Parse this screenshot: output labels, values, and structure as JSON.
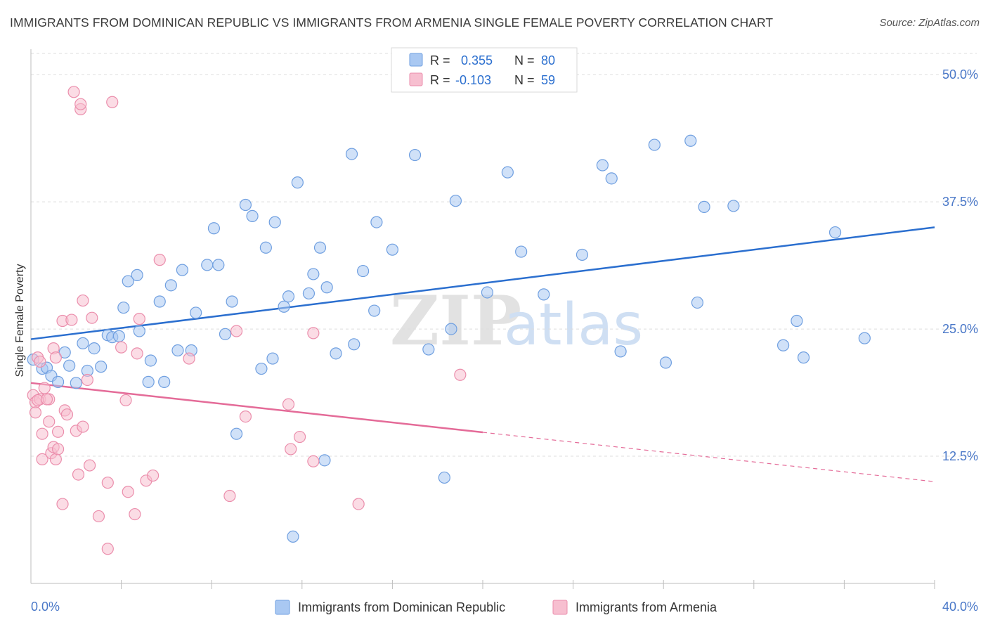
{
  "title": "IMMIGRANTS FROM DOMINICAN REPUBLIC VS IMMIGRANTS FROM ARMENIA SINGLE FEMALE POVERTY CORRELATION CHART",
  "source": "Source: ZipAtlas.com",
  "watermark": {
    "zip": "ZIP",
    "atlas": "atlas"
  },
  "colors": {
    "blue_fill": "#a9c8f2",
    "blue_stroke": "#6f9fe0",
    "blue_line": "#2b6fcf",
    "pink_fill": "#f7bfd0",
    "pink_stroke": "#eb8eac",
    "pink_line": "#e46b98",
    "tick_text": "#4a78c8",
    "grid": "#dddddd"
  },
  "stats_box": {
    "rows": [
      {
        "r_label": "R =",
        "r_value": "0.355",
        "n_label": "N =",
        "n_value": "80"
      },
      {
        "r_label": "R =",
        "r_value": "-0.103",
        "n_label": "N =",
        "n_value": "59"
      }
    ]
  },
  "chart_data": {
    "type": "scatter",
    "ylabel": "Single Female Poverty",
    "xlim": [
      0,
      40
    ],
    "ylim": [
      0,
      52.5
    ],
    "x_tick_labels": [
      "0.0%",
      "40.0%"
    ],
    "y_ticks": [
      {
        "value": 12.5,
        "label": "12.5%"
      },
      {
        "value": 25,
        "label": "25.0%"
      },
      {
        "value": 37.5,
        "label": "37.5%"
      },
      {
        "value": 50,
        "label": "50.0%"
      }
    ],
    "legend": [
      "Immigrants from Dominican Republic",
      "Immigrants from Armenia"
    ],
    "series": [
      {
        "name": "Immigrants from Dominican Republic",
        "color": "blue",
        "trend": {
          "x0": 0,
          "y0": 24.0,
          "x1": 40,
          "y1": 35.0,
          "solid_to": 40
        },
        "points": [
          [
            0.1,
            22.0
          ],
          [
            0.5,
            21.1
          ],
          [
            0.7,
            21.2
          ],
          [
            0.9,
            20.4
          ],
          [
            1.2,
            19.8
          ],
          [
            1.5,
            22.7
          ],
          [
            1.7,
            21.4
          ],
          [
            2.0,
            19.7
          ],
          [
            2.3,
            23.6
          ],
          [
            2.5,
            20.9
          ],
          [
            2.8,
            23.1
          ],
          [
            3.1,
            21.3
          ],
          [
            3.4,
            24.4
          ],
          [
            3.6,
            24.2
          ],
          [
            3.9,
            24.3
          ],
          [
            4.1,
            27.1
          ],
          [
            4.3,
            29.7
          ],
          [
            4.7,
            30.3
          ],
          [
            4.8,
            24.8
          ],
          [
            5.2,
            19.8
          ],
          [
            5.3,
            21.9
          ],
          [
            5.7,
            27.7
          ],
          [
            5.9,
            19.8
          ],
          [
            6.2,
            29.3
          ],
          [
            6.5,
            22.9
          ],
          [
            6.7,
            30.8
          ],
          [
            7.1,
            22.9
          ],
          [
            7.3,
            26.6
          ],
          [
            7.8,
            31.3
          ],
          [
            8.1,
            34.9
          ],
          [
            8.3,
            31.3
          ],
          [
            8.6,
            24.5
          ],
          [
            8.9,
            27.7
          ],
          [
            9.1,
            14.7
          ],
          [
            9.5,
            37.2
          ],
          [
            9.8,
            36.1
          ],
          [
            10.2,
            21.1
          ],
          [
            10.4,
            33.0
          ],
          [
            10.7,
            22.1
          ],
          [
            10.8,
            35.5
          ],
          [
            11.2,
            27.2
          ],
          [
            11.4,
            28.2
          ],
          [
            11.8,
            39.4
          ],
          [
            12.3,
            28.5
          ],
          [
            12.5,
            30.4
          ],
          [
            12.8,
            33.0
          ],
          [
            13.1,
            29.1
          ],
          [
            13.0,
            12.1
          ],
          [
            13.5,
            22.6
          ],
          [
            14.2,
            42.2
          ],
          [
            14.3,
            23.5
          ],
          [
            14.7,
            30.7
          ],
          [
            15.2,
            26.8
          ],
          [
            15.3,
            35.5
          ],
          [
            16.0,
            32.8
          ],
          [
            17.0,
            42.1
          ],
          [
            17.6,
            23.0
          ],
          [
            18.8,
            37.6
          ],
          [
            18.6,
            25.0
          ],
          [
            18.3,
            10.4
          ],
          [
            20.2,
            28.6
          ],
          [
            21.1,
            40.4
          ],
          [
            21.7,
            32.6
          ],
          [
            22.7,
            28.4
          ],
          [
            24.4,
            32.3
          ],
          [
            25.3,
            41.1
          ],
          [
            25.7,
            39.8
          ],
          [
            26.1,
            22.8
          ],
          [
            27.6,
            43.1
          ],
          [
            28.1,
            21.7
          ],
          [
            29.2,
            43.5
          ],
          [
            29.5,
            27.6
          ],
          [
            29.8,
            37.0
          ],
          [
            31.1,
            37.1
          ],
          [
            33.3,
            23.4
          ],
          [
            33.9,
            25.8
          ],
          [
            34.2,
            22.2
          ],
          [
            35.6,
            34.5
          ],
          [
            36.9,
            24.1
          ],
          [
            11.6,
            4.6
          ]
        ]
      },
      {
        "name": "Immigrants from Armenia",
        "color": "pink",
        "trend": {
          "x0": 0,
          "y0": 19.7,
          "x1": 40,
          "y1": 10.0,
          "solid_to": 20
        },
        "points": [
          [
            0.1,
            18.5
          ],
          [
            0.2,
            17.8
          ],
          [
            0.2,
            16.8
          ],
          [
            0.3,
            22.2
          ],
          [
            0.4,
            18.1
          ],
          [
            0.5,
            14.7
          ],
          [
            0.5,
            12.2
          ],
          [
            0.6,
            19.2
          ],
          [
            0.8,
            18.1
          ],
          [
            0.8,
            15.9
          ],
          [
            0.9,
            12.8
          ],
          [
            1.0,
            13.4
          ],
          [
            1.0,
            23.1
          ],
          [
            1.1,
            12.2
          ],
          [
            1.2,
            14.9
          ],
          [
            1.2,
            13.2
          ],
          [
            1.4,
            7.8
          ],
          [
            1.4,
            25.8
          ],
          [
            1.5,
            17.0
          ],
          [
            1.6,
            16.6
          ],
          [
            1.8,
            25.9
          ],
          [
            1.9,
            48.3
          ],
          [
            2.0,
            15.0
          ],
          [
            2.1,
            10.7
          ],
          [
            2.2,
            46.6
          ],
          [
            2.2,
            47.1
          ],
          [
            2.3,
            27.8
          ],
          [
            2.3,
            15.4
          ],
          [
            2.5,
            20.0
          ],
          [
            2.6,
            11.6
          ],
          [
            2.7,
            26.1
          ],
          [
            3.0,
            6.6
          ],
          [
            3.4,
            3.4
          ],
          [
            3.4,
            9.9
          ],
          [
            3.6,
            47.3
          ],
          [
            4.0,
            23.2
          ],
          [
            4.2,
            18.0
          ],
          [
            4.3,
            9.0
          ],
          [
            4.6,
            6.8
          ],
          [
            4.8,
            26.0
          ],
          [
            4.7,
            22.6
          ],
          [
            5.1,
            10.1
          ],
          [
            5.4,
            10.6
          ],
          [
            5.7,
            31.8
          ],
          [
            7.0,
            22.1
          ],
          [
            8.8,
            8.6
          ],
          [
            9.1,
            24.8
          ],
          [
            9.5,
            16.4
          ],
          [
            11.4,
            17.6
          ],
          [
            11.5,
            13.2
          ],
          [
            11.9,
            14.4
          ],
          [
            12.5,
            24.6
          ],
          [
            12.5,
            12.0
          ],
          [
            14.5,
            7.8
          ],
          [
            19.0,
            20.5
          ],
          [
            0.3,
            18.0
          ],
          [
            0.7,
            18.1
          ],
          [
            1.1,
            22.2
          ],
          [
            0.4,
            21.8
          ]
        ]
      }
    ]
  }
}
